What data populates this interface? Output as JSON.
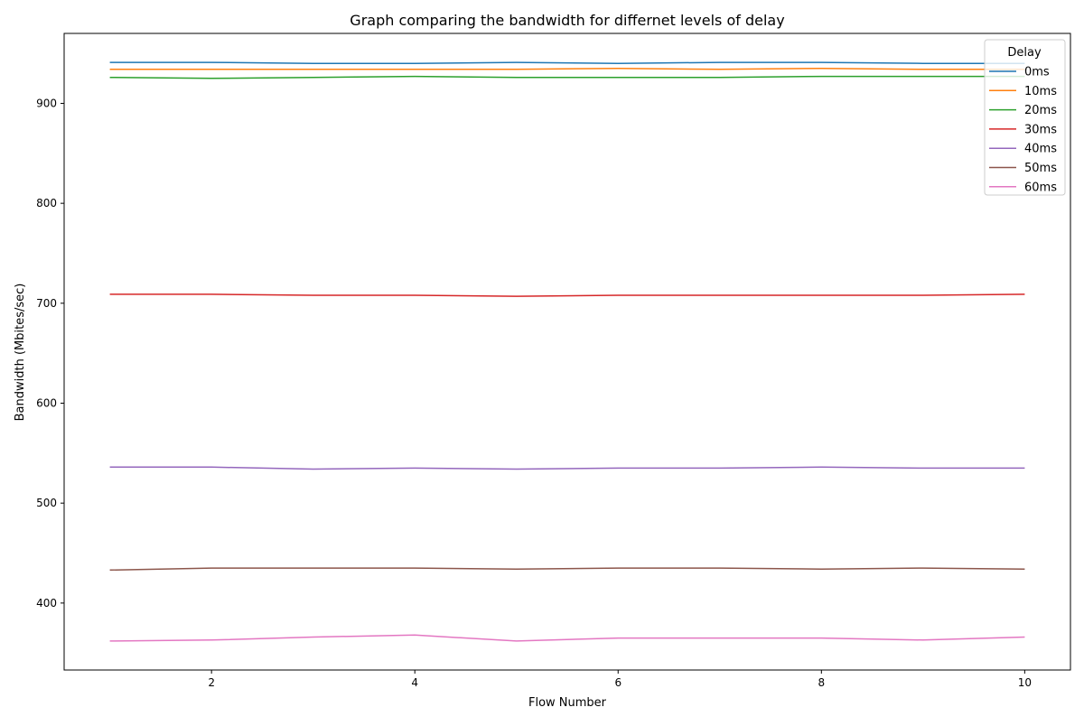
{
  "chart_data": {
    "type": "line",
    "title": "Graph comparing the bandwidth for differnet levels of delay",
    "xlabel": "Flow Number",
    "ylabel": "Bandwidth (Mbites/sec)",
    "xlim": [
      0.55,
      10.45
    ],
    "ylim": [
      333,
      970
    ],
    "xticks": [
      2,
      4,
      6,
      8,
      10
    ],
    "yticks": [
      400,
      500,
      600,
      700,
      800,
      900
    ],
    "grid": false,
    "legend": {
      "title": "Delay",
      "placement": "top-right"
    },
    "x": [
      1,
      2,
      3,
      4,
      5,
      6,
      7,
      8,
      9,
      10
    ],
    "series": [
      {
        "name": "0ms",
        "color": "#1f77b4",
        "values": [
          941,
          941,
          940,
          940,
          941,
          940,
          941,
          941,
          940,
          940
        ]
      },
      {
        "name": "10ms",
        "color": "#ff7f0e",
        "values": [
          934,
          934,
          934,
          934,
          934,
          935,
          934,
          935,
          934,
          934
        ]
      },
      {
        "name": "20ms",
        "color": "#2ca02c",
        "values": [
          926,
          925,
          926,
          927,
          926,
          926,
          926,
          927,
          927,
          927
        ]
      },
      {
        "name": "30ms",
        "color": "#d62728",
        "values": [
          709,
          709,
          708,
          708,
          707,
          708,
          708,
          708,
          708,
          709
        ]
      },
      {
        "name": "40ms",
        "color": "#9467bd",
        "values": [
          536,
          536,
          534,
          535,
          534,
          535,
          535,
          536,
          535,
          535
        ]
      },
      {
        "name": "50ms",
        "color": "#8c564b",
        "values": [
          433,
          435,
          435,
          435,
          434,
          435,
          435,
          434,
          435,
          434
        ]
      },
      {
        "name": "60ms",
        "color": "#e377c2",
        "values": [
          362,
          363,
          366,
          368,
          362,
          365,
          365,
          365,
          363,
          366
        ]
      }
    ]
  }
}
